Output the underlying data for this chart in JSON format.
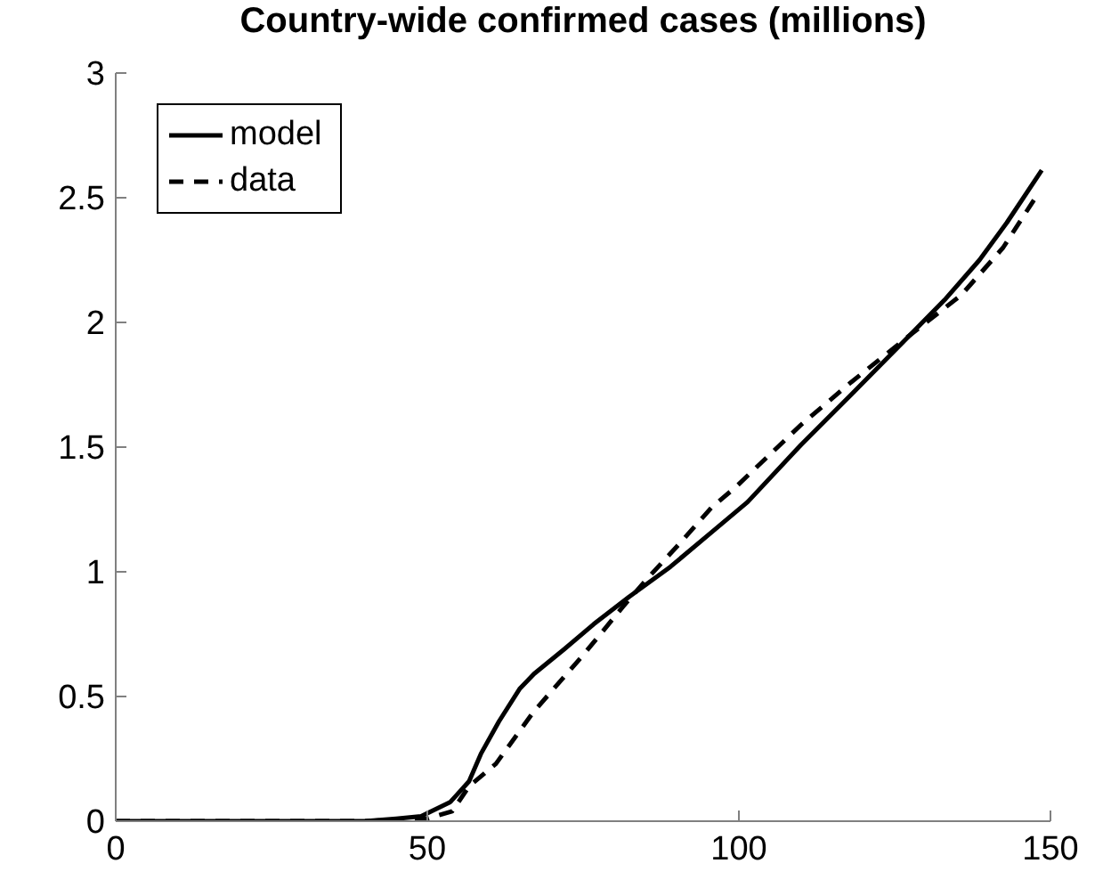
{
  "chart_data": {
    "type": "line",
    "title": "Country-wide confirmed cases (millions)",
    "xlim": [
      0,
      150
    ],
    "xticks": [
      0,
      50,
      100,
      150
    ],
    "ylim": [
      0,
      3
    ],
    "yticks": [
      0,
      0.5,
      1,
      1.5,
      2,
      2.5,
      3
    ],
    "grid": false,
    "legend": "top left",
    "series": [
      {
        "name": "model",
        "color": "#000000",
        "line_style": "solid",
        "x": [
          0,
          20,
          40,
          45,
          49,
          53.7,
          56.7,
          58.6,
          61.5,
          64.8,
          67.1,
          72,
          76.7,
          82.4,
          89,
          95.7,
          101.4,
          110,
          118,
          127.1,
          133,
          138.6,
          143,
          148.6
        ],
        "values": [
          0,
          0,
          0,
          0.01,
          0.02,
          0.077,
          0.16,
          0.27,
          0.4,
          0.53,
          0.59,
          0.69,
          0.79,
          0.9,
          1.02,
          1.16,
          1.28,
          1.51,
          1.71,
          1.94,
          2.09,
          2.25,
          2.4,
          2.61
        ]
      },
      {
        "name": "data",
        "color": "#000000",
        "line_style": "dashed",
        "x": [
          0,
          20,
          40,
          50,
          54,
          56.7,
          61,
          67.1,
          74.8,
          81.4,
          85.2,
          90,
          95.7,
          99.5,
          110,
          118,
          127,
          135.7,
          142.4,
          148.1
        ],
        "values": [
          0,
          0,
          0,
          0.01,
          0.04,
          0.14,
          0.23,
          0.44,
          0.66,
          0.86,
          0.97,
          1.1,
          1.26,
          1.34,
          1.59,
          1.76,
          1.94,
          2.11,
          2.3,
          2.52
        ]
      }
    ]
  }
}
